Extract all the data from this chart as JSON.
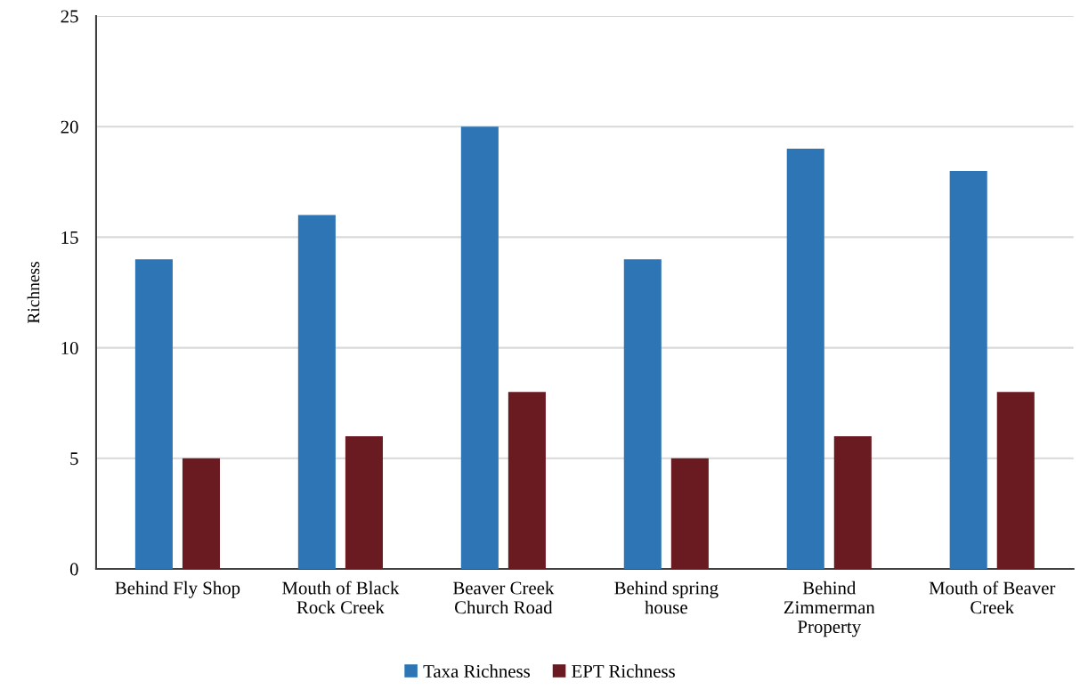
{
  "chart_data": {
    "type": "bar",
    "ylabel": "Richness",
    "categories": [
      "Behind Fly Shop",
      "Mouth of Black\nRock Creek",
      "Beaver Creek\nChurch Road",
      "Behind spring\nhouse",
      "Behind\nZimmerman\nProperty",
      "Mouth of Beaver\nCreek"
    ],
    "series": [
      {
        "name": "Taxa Richness",
        "color": "#2e75b6",
        "values": [
          14,
          16,
          20,
          14,
          19,
          18
        ]
      },
      {
        "name": "EPT Richness",
        "color": "#6a1a21",
        "values": [
          5,
          6,
          8,
          5,
          6,
          8
        ]
      }
    ],
    "ylim": [
      0,
      25
    ],
    "yticks": [
      0,
      5,
      10,
      15,
      20,
      25
    ],
    "grid": "y",
    "legend": "bottom"
  }
}
